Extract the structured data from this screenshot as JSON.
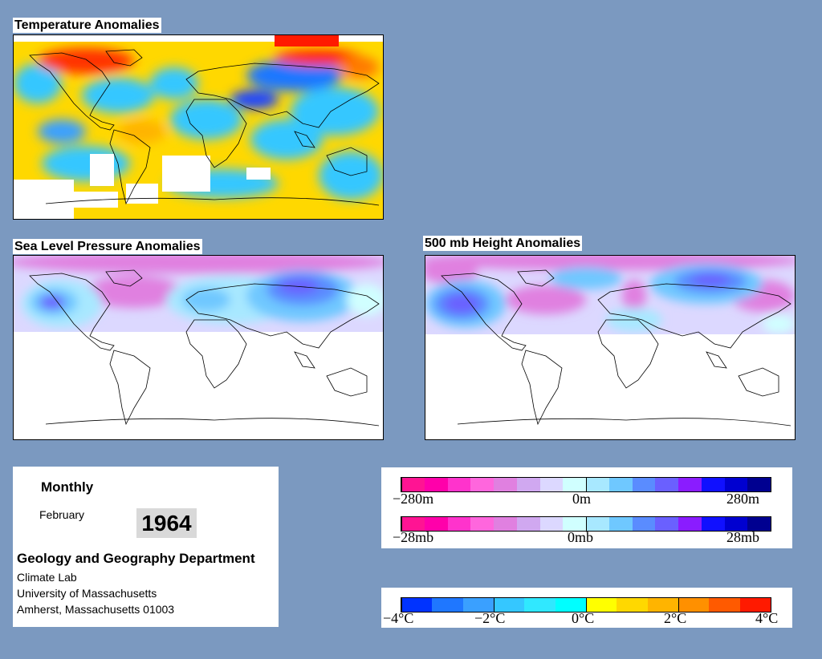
{
  "panels": {
    "temperature": {
      "title": "Temperature Anomalies"
    },
    "slp": {
      "title": "Sea Level Pressure Anomalies"
    },
    "height": {
      "title": "500 mb Height Anomalies"
    }
  },
  "info": {
    "period": "Monthly",
    "month": "February",
    "year": "1964",
    "department": "Geology and Geography Department",
    "lines": [
      "Climate Lab",
      "University of Massachusetts",
      "Amherst, Massachusetts 01003"
    ]
  },
  "legends": {
    "height": {
      "left": "−280m",
      "mid": "0m",
      "right": "280m"
    },
    "pressure": {
      "left": "−28mb",
      "mid": "0mb",
      "right": "28mb"
    },
    "temperature": {
      "labels": [
        "−4°C",
        "−2°C",
        "0°C",
        "2°C",
        "4°C"
      ]
    }
  },
  "colors": {
    "background": "#7b99c0",
    "pressure_scale": [
      "#ff1493",
      "#ff00aa",
      "#ff33cc",
      "#ff66dd",
      "#e080e0",
      "#d0a8f0",
      "#dcd8ff",
      "#d0ffff",
      "#a8e8ff",
      "#6fc8ff",
      "#5a8cff",
      "#6a60ff",
      "#8a1cff",
      "#1010ff",
      "#0000d0",
      "#000090"
    ],
    "temp_scale": [
      "#0033ff",
      "#1f77ff",
      "#3aa0ff",
      "#35c7ff",
      "#30e8ff",
      "#00ffff",
      "#ffff00",
      "#ffd800",
      "#ffb400",
      "#ff9000",
      "#ff5a00",
      "#ff1a00"
    ]
  }
}
